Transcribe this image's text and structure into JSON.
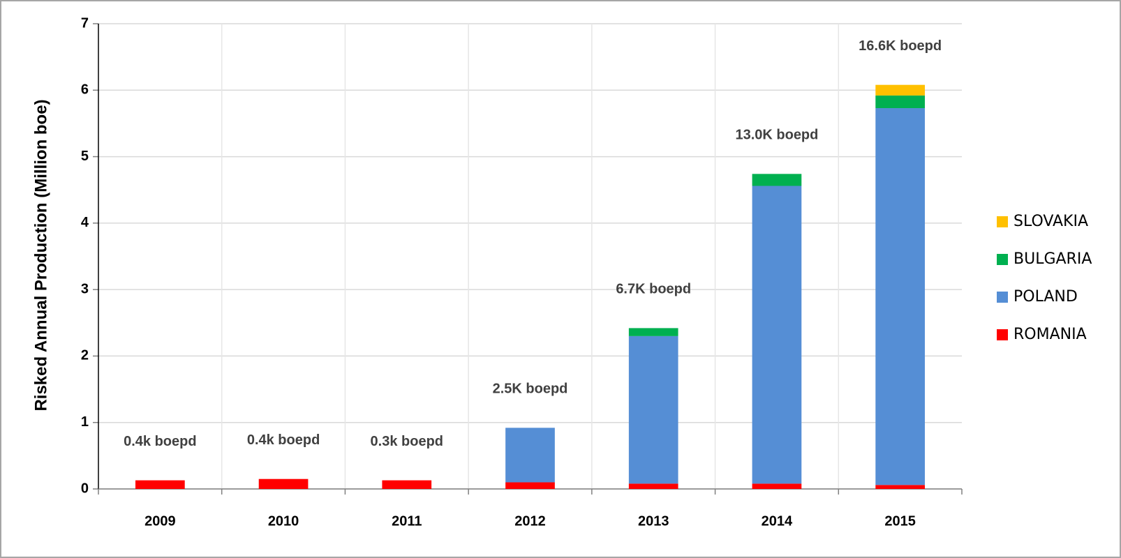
{
  "chart_data": {
    "type": "bar",
    "stacked": true,
    "y_label": "Risked Annual Production (Million boe)",
    "categories": [
      "2009",
      "2010",
      "2011",
      "2012",
      "2013",
      "2014",
      "2015"
    ],
    "series": [
      {
        "name": "ROMANIA",
        "color": "#ff0000",
        "values": [
          0.13,
          0.15,
          0.13,
          0.1,
          0.08,
          0.08,
          0.06
        ]
      },
      {
        "name": "POLAND",
        "color": "#558ed5",
        "values": [
          0,
          0,
          0,
          0.82,
          2.22,
          4.48,
          5.67
        ]
      },
      {
        "name": "BULGARIA",
        "color": "#00b050",
        "values": [
          0,
          0,
          0,
          0,
          0.12,
          0.18,
          0.19
        ]
      },
      {
        "name": "SLOVAKIA",
        "color": "#ffc000",
        "values": [
          0,
          0,
          0,
          0,
          0,
          0,
          0.16
        ]
      }
    ],
    "annotations": [
      "0.4k boepd",
      "0.4k boepd",
      "0.3k boepd",
      "2.5K boepd",
      "6.7K boepd",
      "13.0K boepd",
      "16.6K boepd"
    ],
    "ylim": [
      0,
      7
    ],
    "yticks": [
      0,
      1,
      2,
      3,
      4,
      5,
      6,
      7
    ],
    "grid": true,
    "legend": "right"
  }
}
